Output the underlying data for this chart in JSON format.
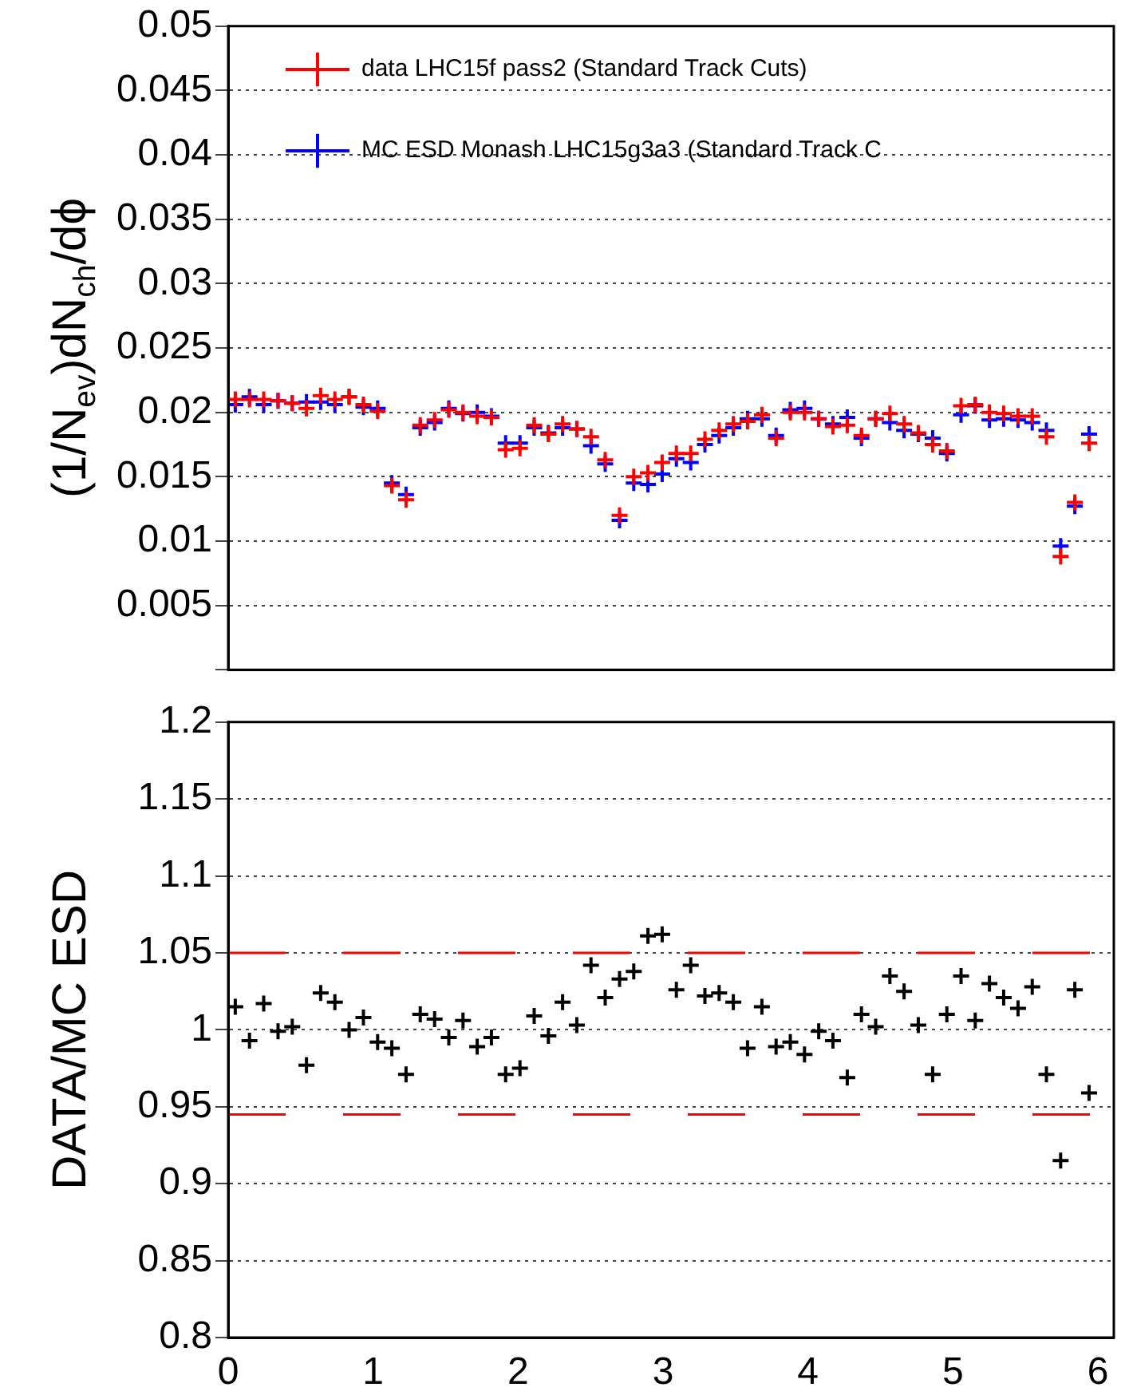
{
  "chart_data": [
    {
      "type": "scatter",
      "ylabel": "(1/N$_{ev}$)dN$_{ch}$/dϕ",
      "legend": "top left",
      "marker": "cross",
      "grid": "y",
      "tick_labels": "y",
      "xlim": [
        0,
        6.11
      ],
      "xticks": [
        0,
        1,
        2,
        3,
        4,
        5,
        6
      ],
      "ylim": [
        0,
        0.05
      ],
      "yticks": [
        {
          "value": 0,
          "label": null
        },
        0.005,
        0.01,
        0.015,
        0.02,
        0.025,
        0.03,
        0.035,
        0.04,
        0.045,
        0.05
      ],
      "x": [
        0.049,
        0.147,
        0.245,
        0.344,
        0.442,
        0.54,
        0.638,
        0.736,
        0.834,
        0.933,
        1.031,
        1.129,
        1.227,
        1.325,
        1.424,
        1.522,
        1.62,
        1.718,
        1.816,
        1.914,
        2.013,
        2.111,
        2.209,
        2.307,
        2.405,
        2.503,
        2.601,
        2.7,
        2.798,
        2.896,
        2.994,
        3.092,
        3.191,
        3.289,
        3.387,
        3.485,
        3.583,
        3.682,
        3.78,
        3.878,
        3.976,
        4.074,
        4.172,
        4.271,
        4.369,
        4.467,
        4.565,
        4.663,
        4.761,
        4.86,
        4.958,
        5.056,
        5.154,
        5.252,
        5.35,
        5.449,
        5.547,
        5.645,
        5.743,
        5.841,
        5.939
      ],
      "series": [
        {
          "name": "data LHC15f pass2 (Standard Track Cuts)",
          "color": "#ff0000",
          "values": [
            0.021,
            0.021,
            0.021,
            0.0209,
            0.0207,
            0.0203,
            0.0213,
            0.021,
            0.0212,
            0.0206,
            0.0201,
            0.0143,
            0.0132,
            0.019,
            0.0194,
            0.0202,
            0.02,
            0.0197,
            0.0196,
            0.0171,
            0.0172,
            0.019,
            0.0183,
            0.0191,
            0.0187,
            0.0181,
            0.0163,
            0.012,
            0.015,
            0.0153,
            0.0161,
            0.0168,
            0.0168,
            0.0179,
            0.0186,
            0.0191,
            0.0193,
            0.0198,
            0.018,
            0.02,
            0.02,
            0.0195,
            0.0189,
            0.019,
            0.0182,
            0.0195,
            0.0199,
            0.0191,
            0.0184,
            0.0175,
            0.017,
            0.0205,
            0.0206,
            0.02,
            0.0199,
            0.0197,
            0.0197,
            0.0181,
            0.0088,
            0.013,
            0.0176
          ]
        },
        {
          "name": "MC ESD Monash LHC15g3a3 (Standard Track C",
          "color": "#0000ff",
          "values": [
            0.0206,
            0.0212,
            0.0206,
            0.0209,
            0.0207,
            0.0208,
            0.0208,
            0.0206,
            0.0212,
            0.0204,
            0.0203,
            0.0145,
            0.0136,
            0.0188,
            0.0192,
            0.0203,
            0.0199,
            0.02,
            0.0197,
            0.0176,
            0.0176,
            0.0188,
            0.0184,
            0.0188,
            0.0187,
            0.0174,
            0.016,
            0.0116,
            0.0145,
            0.0144,
            0.0152,
            0.0164,
            0.0161,
            0.0175,
            0.0182,
            0.0188,
            0.0195,
            0.0195,
            0.0182,
            0.0202,
            0.0203,
            0.0195,
            0.0191,
            0.0196,
            0.018,
            0.0195,
            0.0192,
            0.0186,
            0.0183,
            0.018,
            0.0168,
            0.0198,
            0.0205,
            0.0194,
            0.0195,
            0.0194,
            0.0192,
            0.0186,
            0.0096,
            0.0127,
            0.0183
          ]
        }
      ]
    },
    {
      "type": "scatter",
      "ylabel": "DATA/MC ESD",
      "marker": "cross",
      "grid": "y",
      "xlim": [
        0,
        6.11
      ],
      "xticks": [
        0,
        1,
        2,
        3,
        4,
        5,
        6
      ],
      "ylim": [
        0.8,
        1.2
      ],
      "yticks": [
        0.8,
        0.85,
        0.9,
        0.95,
        1,
        1.05,
        1.1,
        1.15,
        1.2
      ],
      "x": [
        0.049,
        0.147,
        0.245,
        0.344,
        0.442,
        0.54,
        0.638,
        0.736,
        0.834,
        0.933,
        1.031,
        1.129,
        1.227,
        1.325,
        1.424,
        1.522,
        1.62,
        1.718,
        1.816,
        1.914,
        2.013,
        2.111,
        2.209,
        2.307,
        2.405,
        2.503,
        2.601,
        2.7,
        2.798,
        2.896,
        2.994,
        3.092,
        3.191,
        3.289,
        3.387,
        3.485,
        3.583,
        3.682,
        3.78,
        3.878,
        3.976,
        4.074,
        4.172,
        4.271,
        4.369,
        4.467,
        4.565,
        4.663,
        4.761,
        4.86,
        4.958,
        5.056,
        5.154,
        5.252,
        5.35,
        5.449,
        5.547,
        5.645,
        5.743,
        5.841,
        5.939
      ],
      "series": [
        {
          "color": "#000000",
          "values": [
            1.015,
            0.993,
            1.017,
            0.999,
            1.002,
            0.977,
            1.024,
            1.018,
            1.0,
            1.008,
            0.992,
            0.988,
            0.971,
            1.01,
            1.007,
            0.995,
            1.006,
            0.989,
            0.995,
            0.971,
            0.975,
            1.009,
            0.996,
            1.018,
            1.003,
            1.042,
            1.021,
            1.033,
            1.038,
            1.061,
            1.062,
            1.026,
            1.042,
            1.022,
            1.024,
            1.018,
            0.988,
            1.015,
            0.989,
            0.992,
            0.984,
            0.999,
            0.993,
            0.969,
            1.01,
            1.002,
            1.035,
            1.025,
            1.003,
            0.971,
            1.01,
            1.035,
            1.006,
            1.03,
            1.021,
            1.014,
            1.028,
            0.971,
            0.915,
            1.026,
            0.959
          ]
        }
      ],
      "ref_lines": [
        {
          "axis": "y",
          "value": 1.05,
          "color": "#ff0000",
          "line_style": "dashed"
        },
        {
          "axis": "y",
          "value": 0.945,
          "color": "#ff0000",
          "line_style": "dashed"
        }
      ]
    }
  ]
}
